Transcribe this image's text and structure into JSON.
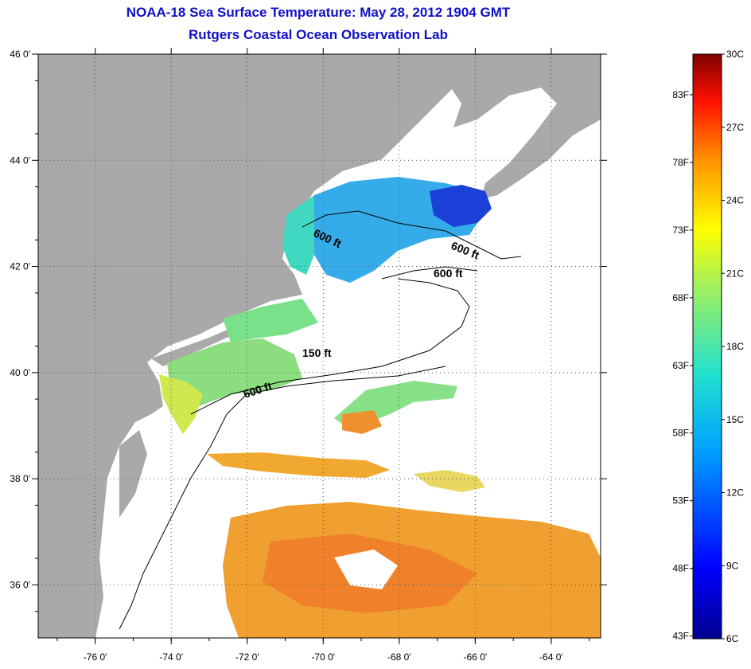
{
  "header": {
    "title": "NOAA-18 Sea Surface Temperature:  May 28, 2012 1904 GMT",
    "subtitle": "Rutgers Coastal Ocean Observation Lab"
  },
  "map": {
    "lon_range": [
      -77.5,
      -62.7
    ],
    "lat_range": [
      35,
      46
    ],
    "lon_ticks": [
      {
        "value": -76,
        "label": "-76 0'"
      },
      {
        "value": -74,
        "label": "-74 0'"
      },
      {
        "value": -72,
        "label": "-72 0'"
      },
      {
        "value": -70,
        "label": "-70 0'"
      },
      {
        "value": -68,
        "label": "-68 0'"
      },
      {
        "value": -66,
        "label": "-66 0'"
      },
      {
        "value": -64,
        "label": "-64 0'"
      }
    ],
    "lat_ticks": [
      {
        "value": 46,
        "label": "46 0'"
      },
      {
        "value": 44,
        "label": "44 0'"
      },
      {
        "value": 42,
        "label": "42 0'"
      },
      {
        "value": 40,
        "label": "40 0'"
      },
      {
        "value": 38,
        "label": "38 0'"
      },
      {
        "value": 36,
        "label": "36 0'"
      }
    ],
    "contour_labels": [
      "600 ft",
      "600 ft",
      "600 ft",
      "150 ft",
      "600 ft"
    ],
    "colors": {
      "land": "#a9a9a9",
      "ocean_nodata": "#ffffff",
      "grid": "#555555"
    }
  },
  "colorbar": {
    "min_c": 6,
    "max_c": 30,
    "left_labels": [
      "83F",
      "78F",
      "73F",
      "68F",
      "63F",
      "58F",
      "53F",
      "48F",
      "43F"
    ],
    "right_labels": [
      "30C",
      "27C",
      "24C",
      "21C",
      "18C",
      "15C",
      "12C",
      "9C",
      "6C"
    ]
  }
}
